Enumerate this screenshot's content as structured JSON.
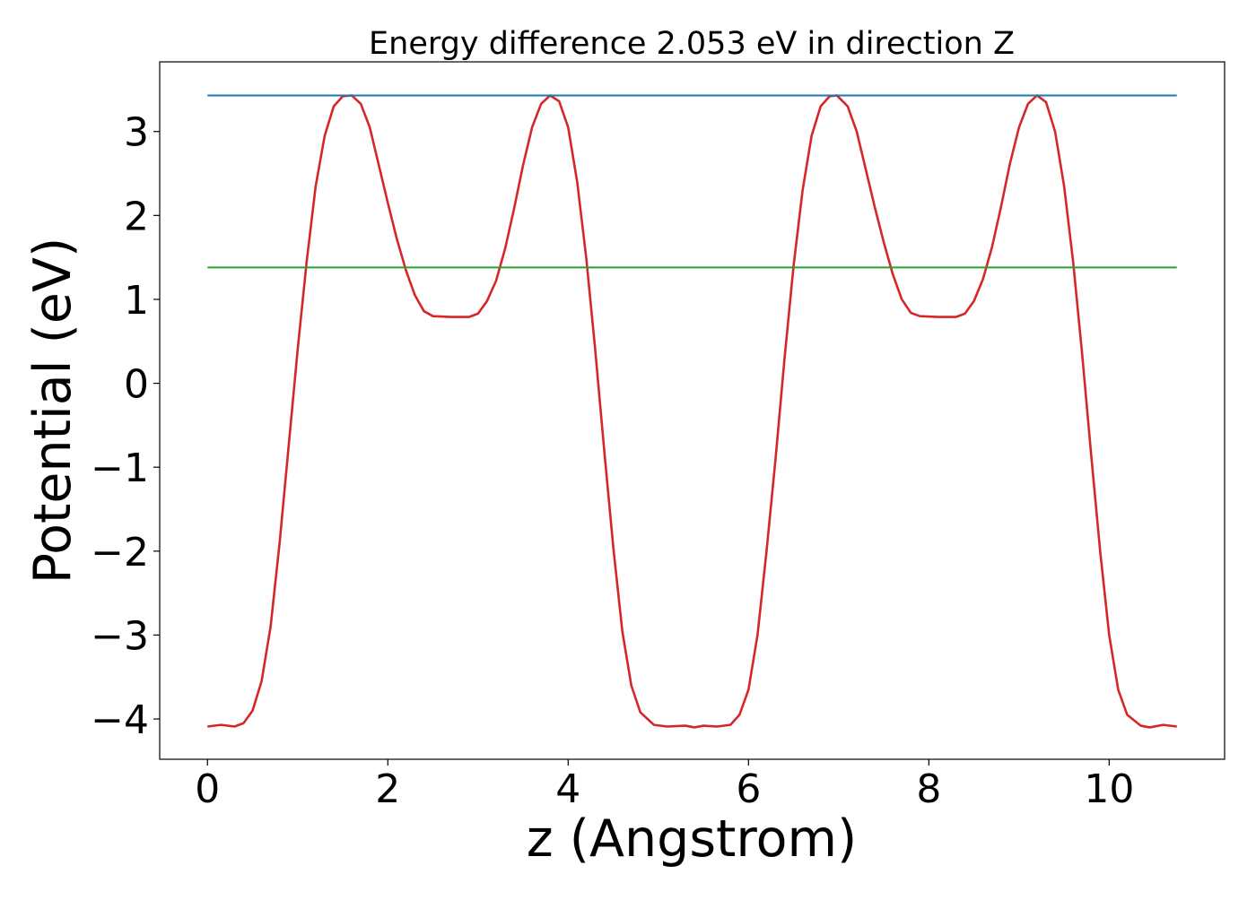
{
  "chart_data": {
    "type": "line",
    "title": "Energy difference 2.053 eV in direction Z",
    "xlabel": "z (Angstrom)",
    "ylabel": "Potential (eV)",
    "xlim": [
      -0.53,
      11.28
    ],
    "ylim": [
      -4.48,
      3.83
    ],
    "x_ticks": [
      0,
      2,
      4,
      6,
      8,
      10
    ],
    "y_ticks": [
      -4,
      -3,
      -2,
      -1,
      0,
      1,
      2,
      3
    ],
    "x_tick_labels": [
      "0",
      "2",
      "4",
      "6",
      "8",
      "10"
    ],
    "y_tick_labels": [
      "−4",
      "−3",
      "−2",
      "−1",
      "0",
      "1",
      "2",
      "3"
    ],
    "grid": false,
    "legend": "none",
    "series": [
      {
        "color": "#d62728",
        "points": [
          [
            0.0,
            -4.09
          ],
          [
            0.15,
            -4.07
          ],
          [
            0.3,
            -4.09
          ],
          [
            0.4,
            -4.05
          ],
          [
            0.5,
            -3.9
          ],
          [
            0.6,
            -3.55
          ],
          [
            0.7,
            -2.9
          ],
          [
            0.8,
            -1.9
          ],
          [
            0.9,
            -0.75
          ],
          [
            1.0,
            0.4
          ],
          [
            1.1,
            1.45
          ],
          [
            1.2,
            2.35
          ],
          [
            1.3,
            2.95
          ],
          [
            1.4,
            3.3
          ],
          [
            1.5,
            3.42
          ],
          [
            1.6,
            3.43
          ],
          [
            1.7,
            3.33
          ],
          [
            1.8,
            3.05
          ],
          [
            1.9,
            2.6
          ],
          [
            2.0,
            2.15
          ],
          [
            2.1,
            1.72
          ],
          [
            2.2,
            1.35
          ],
          [
            2.3,
            1.05
          ],
          [
            2.4,
            0.86
          ],
          [
            2.5,
            0.8
          ],
          [
            2.7,
            0.79
          ],
          [
            2.9,
            0.79
          ],
          [
            3.0,
            0.83
          ],
          [
            3.1,
            0.98
          ],
          [
            3.2,
            1.22
          ],
          [
            3.3,
            1.6
          ],
          [
            3.4,
            2.08
          ],
          [
            3.5,
            2.6
          ],
          [
            3.6,
            3.05
          ],
          [
            3.7,
            3.33
          ],
          [
            3.8,
            3.43
          ],
          [
            3.9,
            3.36
          ],
          [
            4.0,
            3.05
          ],
          [
            4.1,
            2.4
          ],
          [
            4.2,
            1.5
          ],
          [
            4.3,
            0.4
          ],
          [
            4.4,
            -0.8
          ],
          [
            4.5,
            -1.95
          ],
          [
            4.6,
            -2.95
          ],
          [
            4.7,
            -3.6
          ],
          [
            4.8,
            -3.92
          ],
          [
            4.95,
            -4.07
          ],
          [
            5.1,
            -4.09
          ],
          [
            5.3,
            -4.08
          ],
          [
            5.4,
            -4.1
          ],
          [
            5.5,
            -4.08
          ],
          [
            5.65,
            -4.09
          ],
          [
            5.8,
            -4.07
          ],
          [
            5.9,
            -3.95
          ],
          [
            6.0,
            -3.65
          ],
          [
            6.1,
            -3.0
          ],
          [
            6.2,
            -2.0
          ],
          [
            6.3,
            -0.9
          ],
          [
            6.4,
            0.3
          ],
          [
            6.5,
            1.4
          ],
          [
            6.6,
            2.3
          ],
          [
            6.7,
            2.95
          ],
          [
            6.8,
            3.3
          ],
          [
            6.9,
            3.42
          ],
          [
            6.98,
            3.43
          ],
          [
            7.1,
            3.3
          ],
          [
            7.2,
            3.0
          ],
          [
            7.3,
            2.55
          ],
          [
            7.4,
            2.1
          ],
          [
            7.5,
            1.68
          ],
          [
            7.6,
            1.3
          ],
          [
            7.7,
            1.0
          ],
          [
            7.8,
            0.84
          ],
          [
            7.9,
            0.8
          ],
          [
            8.1,
            0.79
          ],
          [
            8.3,
            0.79
          ],
          [
            8.4,
            0.83
          ],
          [
            8.5,
            0.98
          ],
          [
            8.6,
            1.24
          ],
          [
            8.7,
            1.62
          ],
          [
            8.8,
            2.1
          ],
          [
            8.9,
            2.62
          ],
          [
            9.0,
            3.05
          ],
          [
            9.1,
            3.33
          ],
          [
            9.2,
            3.43
          ],
          [
            9.3,
            3.35
          ],
          [
            9.4,
            3.0
          ],
          [
            9.5,
            2.35
          ],
          [
            9.6,
            1.45
          ],
          [
            9.7,
            0.35
          ],
          [
            9.8,
            -0.85
          ],
          [
            9.9,
            -2.0
          ],
          [
            10.0,
            -3.0
          ],
          [
            10.1,
            -3.65
          ],
          [
            10.2,
            -3.95
          ],
          [
            10.35,
            -4.08
          ],
          [
            10.45,
            -4.1
          ],
          [
            10.6,
            -4.07
          ],
          [
            10.75,
            -4.09
          ]
        ]
      },
      {
        "color": "#1f77b4",
        "points": [
          [
            0.0,
            3.43
          ],
          [
            10.75,
            3.43
          ]
        ]
      },
      {
        "color": "#2ca02c",
        "points": [
          [
            0.0,
            1.38
          ],
          [
            10.75,
            1.38
          ]
        ]
      }
    ]
  }
}
